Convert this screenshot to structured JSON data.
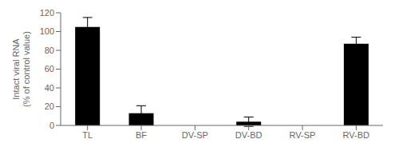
{
  "chart_data": {
    "type": "bar",
    "categories": [
      "TL",
      "BF",
      "DV-SP",
      "DV-BD",
      "RV-SP",
      "RV-BD"
    ],
    "values": [
      105,
      13,
      0,
      4,
      0,
      87
    ],
    "errors": [
      10,
      8,
      0,
      5,
      0,
      7
    ],
    "color": "#000000",
    "ylabel": "Intact viral RNA\n(% of control value)",
    "ylim": [
      0,
      120
    ],
    "yticks": [
      0,
      20,
      40,
      60,
      80,
      100,
      120
    ],
    "grid": false
  }
}
